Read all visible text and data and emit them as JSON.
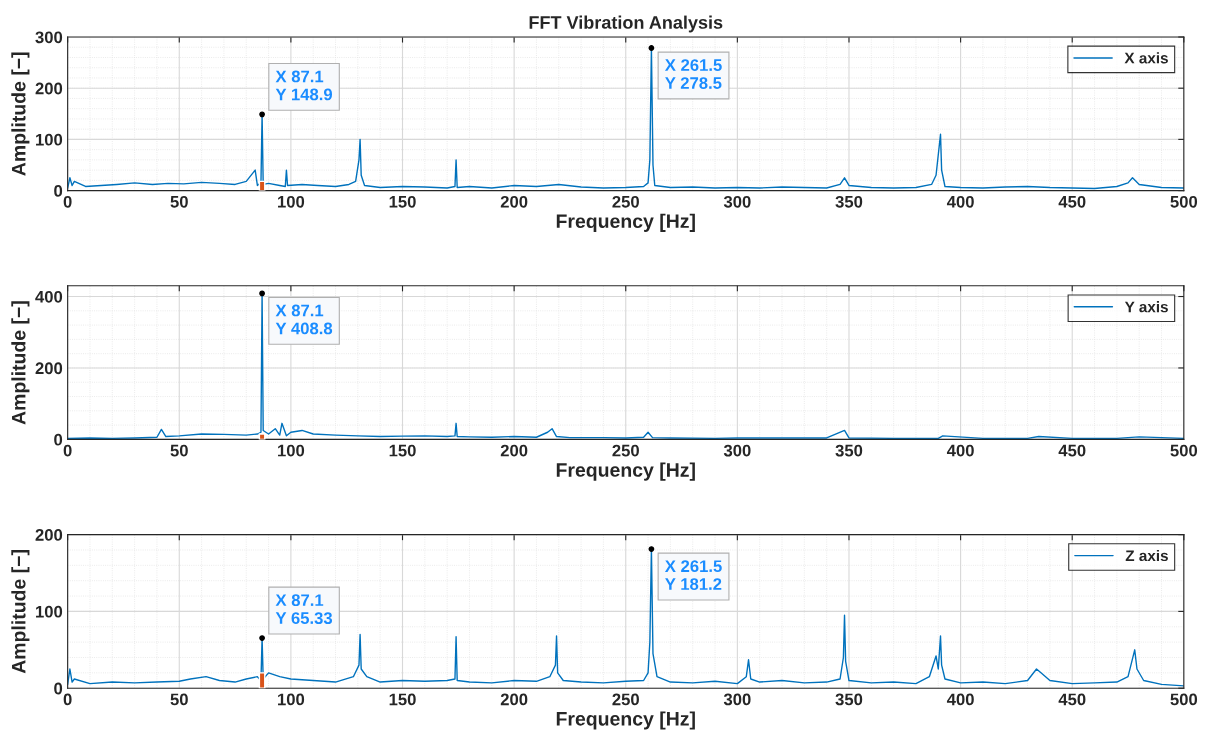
{
  "chart_data": [
    {
      "type": "line",
      "title": "FFT Vibration Analysis",
      "xlabel": "Frequency [Hz]",
      "ylabel": "Amplitude [−]",
      "xlim": [
        0,
        500
      ],
      "xticks": [
        0,
        50,
        100,
        150,
        200,
        250,
        300,
        350,
        400,
        450,
        500
      ],
      "ylim": [
        0,
        300
      ],
      "yticks": [
        0,
        100,
        200,
        300
      ],
      "grid": true,
      "legend": "top right",
      "annotations": [
        "X 87.1\nY 148.9",
        "X 261.5\nY 278.5"
      ],
      "series": [
        {
          "name": "X axis",
          "color": "#0072bd",
          "x": [
            0,
            1,
            2,
            3,
            8,
            15,
            22,
            30,
            38,
            45,
            52,
            60,
            68,
            75,
            80,
            84,
            85,
            85.6,
            86.6,
            87.1,
            87.6,
            90,
            95,
            97.5,
            98,
            98.5,
            105,
            112,
            120,
            126,
            129,
            130.5,
            131,
            131.5,
            133,
            140,
            150,
            160,
            170,
            173.5,
            174,
            174.5,
            180,
            190,
            200,
            210,
            220,
            230,
            240,
            250,
            258,
            260,
            260.8,
            261.5,
            262.2,
            263,
            270,
            280,
            290,
            300,
            310,
            320,
            330,
            340,
            346,
            348,
            350,
            360,
            370,
            380,
            387,
            389,
            391,
            391.5,
            393,
            400,
            410,
            420,
            430,
            440,
            450,
            460,
            470,
            475,
            477,
            480,
            490,
            500
          ],
          "values": [
            5,
            25,
            10,
            18,
            8,
            10,
            12,
            15,
            12,
            14,
            13,
            16,
            14,
            12,
            18,
            40,
            10,
            12,
            15,
            148.9,
            12,
            14,
            10,
            8,
            40,
            10,
            12,
            10,
            8,
            12,
            18,
            60,
            100,
            30,
            10,
            6,
            8,
            7,
            5,
            8,
            60,
            6,
            8,
            5,
            10,
            8,
            12,
            7,
            5,
            6,
            8,
            15,
            60,
            278.5,
            50,
            10,
            6,
            7,
            5,
            6,
            5,
            7,
            6,
            5,
            12,
            25,
            10,
            6,
            5,
            6,
            12,
            30,
            110,
            40,
            8,
            6,
            5,
            7,
            8,
            6,
            5,
            4,
            8,
            15,
            25,
            12,
            6,
            5
          ]
        },
        {
          "type": "bar",
          "color": "#d95319",
          "x": [
            87.1
          ],
          "values": [
            18
          ]
        },
        {
          "type": "scatter",
          "color": "#000000",
          "x": [
            87.1,
            261.5
          ],
          "values": [
            148.9,
            278.5
          ]
        }
      ]
    },
    {
      "type": "line",
      "xlabel": "Frequency [Hz]",
      "ylabel": "Amplitude [−]",
      "xlim": [
        0,
        500
      ],
      "xticks": [
        0,
        50,
        100,
        150,
        200,
        250,
        300,
        350,
        400,
        450,
        500
      ],
      "ylim": [
        0,
        430
      ],
      "yticks": [
        0,
        200,
        400
      ],
      "grid": true,
      "legend": "top right",
      "annotations": [
        "X 87.1\nY 408.8"
      ],
      "series": [
        {
          "name": "Y axis",
          "color": "#0072bd",
          "x": [
            0,
            10,
            20,
            30,
            40,
            42,
            44,
            50,
            60,
            70,
            80,
            85,
            86.6,
            87.1,
            87.6,
            90,
            93,
            95,
            96,
            98,
            100,
            105,
            110,
            120,
            130,
            140,
            150,
            160,
            170,
            173.5,
            174,
            174.5,
            180,
            190,
            200,
            210,
            215,
            217,
            219,
            225,
            240,
            250,
            258,
            260,
            262,
            270,
            290,
            300,
            320,
            340,
            348,
            350,
            370,
            390,
            392,
            410,
            430,
            435,
            450,
            470,
            480,
            500
          ],
          "values": [
            3,
            4,
            3,
            4,
            6,
            28,
            8,
            10,
            15,
            14,
            12,
            15,
            20,
            408.8,
            25,
            15,
            30,
            12,
            45,
            10,
            20,
            25,
            15,
            12,
            10,
            8,
            9,
            10,
            8,
            10,
            45,
            8,
            7,
            6,
            8,
            6,
            20,
            30,
            8,
            5,
            5,
            4,
            6,
            20,
            5,
            4,
            3,
            4,
            4,
            4,
            25,
            4,
            3,
            3,
            10,
            3,
            3,
            8,
            3,
            3,
            7,
            3
          ]
        },
        {
          "type": "bar",
          "color": "#d95319",
          "x": [
            87.1
          ],
          "values": [
            15
          ]
        },
        {
          "type": "scatter",
          "color": "#000000",
          "x": [
            87.1
          ],
          "values": [
            408.8
          ]
        }
      ]
    },
    {
      "type": "line",
      "xlabel": "Frequency [Hz]",
      "ylabel": "Amplitude [−]",
      "xlim": [
        0,
        500
      ],
      "xticks": [
        0,
        50,
        100,
        150,
        200,
        250,
        300,
        350,
        400,
        450,
        500
      ],
      "ylim": [
        0,
        200
      ],
      "yticks": [
        0,
        100,
        200
      ],
      "grid": true,
      "legend": "top right",
      "annotations": [
        "X 87.1\nY 65.33",
        "X 261.5\nY 181.2"
      ],
      "series": [
        {
          "name": "Z axis",
          "color": "#0072bd",
          "x": [
            0,
            1,
            2,
            3,
            10,
            20,
            30,
            40,
            50,
            55,
            62,
            68,
            75,
            80,
            85,
            86.6,
            87.1,
            87.6,
            90,
            95,
            100,
            110,
            120,
            128,
            130.5,
            131,
            131.5,
            134,
            140,
            150,
            160,
            170,
            173.5,
            174,
            174.5,
            180,
            190,
            200,
            210,
            216,
            218.5,
            219,
            219.5,
            222,
            230,
            240,
            250,
            258,
            260,
            260.8,
            261.5,
            262.2,
            264,
            270,
            280,
            290,
            300,
            304,
            305,
            306,
            310,
            320,
            330,
            340,
            346,
            347.5,
            348,
            348.5,
            350,
            360,
            370,
            380,
            386,
            389,
            390,
            391,
            391.5,
            393,
            400,
            410,
            420,
            430,
            434,
            436,
            440,
            450,
            460,
            470,
            475,
            478,
            479,
            482,
            490,
            500
          ],
          "values": [
            5,
            25,
            8,
            12,
            6,
            8,
            7,
            8,
            9,
            12,
            15,
            10,
            8,
            12,
            15,
            10,
            65.33,
            12,
            20,
            15,
            12,
            10,
            8,
            15,
            30,
            70,
            25,
            15,
            8,
            10,
            9,
            10,
            12,
            67,
            10,
            8,
            7,
            10,
            9,
            15,
            30,
            68,
            20,
            10,
            8,
            7,
            9,
            10,
            20,
            60,
            181.2,
            45,
            15,
            8,
            7,
            9,
            6,
            15,
            37,
            12,
            8,
            10,
            7,
            8,
            12,
            40,
            95,
            35,
            10,
            7,
            8,
            6,
            15,
            42,
            25,
            68,
            30,
            12,
            7,
            8,
            6,
            10,
            25,
            20,
            10,
            6,
            7,
            8,
            15,
            50,
            25,
            10,
            5,
            3
          ]
        },
        {
          "type": "bar",
          "color": "#d95319",
          "x": [
            87.1
          ],
          "values": [
            20
          ]
        },
        {
          "type": "scatter",
          "color": "#000000",
          "x": [
            87.1,
            261.5
          ],
          "values": [
            65.33,
            181.2
          ]
        }
      ]
    }
  ]
}
